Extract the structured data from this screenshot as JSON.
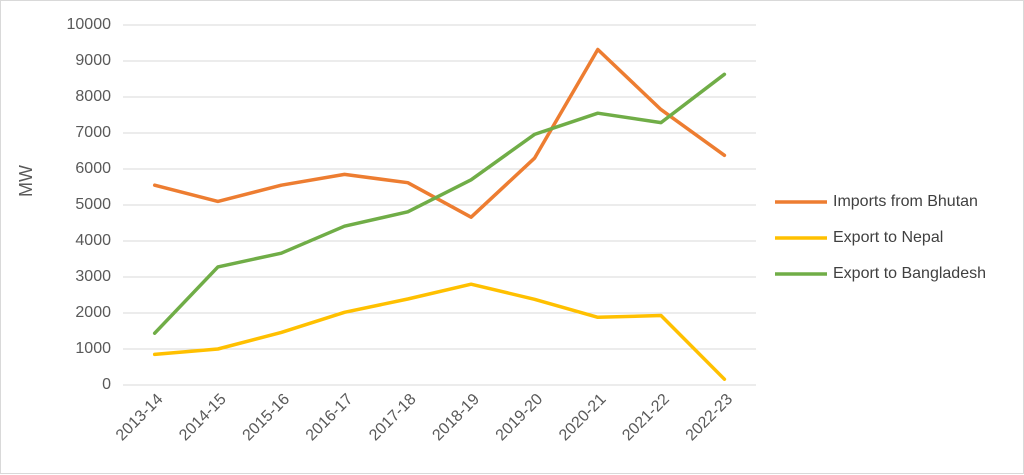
{
  "chart_data": {
    "type": "line",
    "title": "",
    "xlabel": "",
    "ylabel": "MW",
    "ylim": [
      0,
      10000
    ],
    "yticks": [
      0,
      1000,
      2000,
      3000,
      4000,
      5000,
      6000,
      7000,
      8000,
      9000,
      10000
    ],
    "grid": true,
    "legend_position": "right",
    "categories": [
      "2013-14",
      "2014-15",
      "2015-16",
      "2016-17",
      "2017-18",
      "2018-19",
      "2019-20",
      "2020-21",
      "2021-22",
      "2022-23"
    ],
    "series": [
      {
        "name": "Imports from Bhutan",
        "color": "#ED7D31",
        "values": [
          5550,
          5100,
          5550,
          5850,
          5620,
          4660,
          6300,
          9320,
          7650,
          6380
        ]
      },
      {
        "name": "Export to Nepal",
        "color": "#FFC000",
        "values": [
          850,
          1000,
          1460,
          2020,
          2390,
          2800,
          2380,
          1880,
          1930,
          160
        ]
      },
      {
        "name": "Export to Bangladesh",
        "color": "#70AD47",
        "values": [
          1440,
          3280,
          3660,
          4410,
          4810,
          5700,
          6960,
          7550,
          7290,
          8630
        ]
      }
    ]
  }
}
